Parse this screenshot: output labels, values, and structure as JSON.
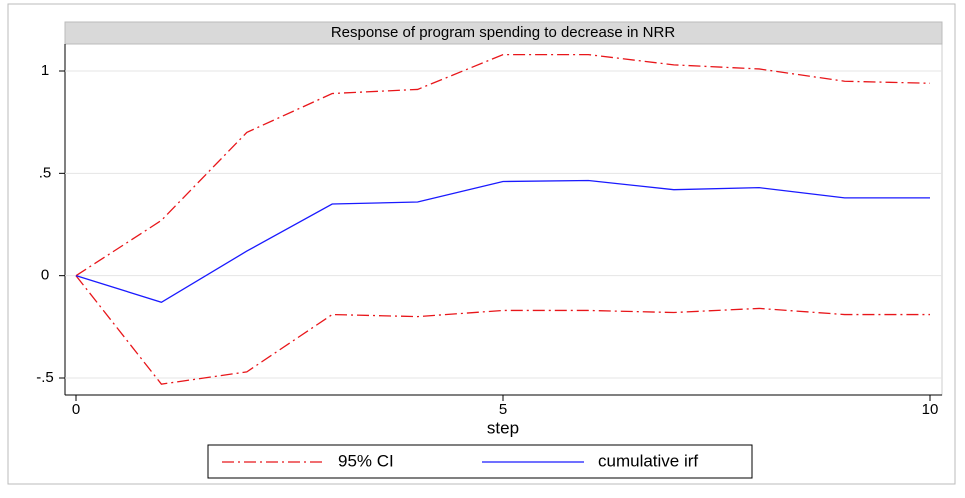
{
  "chart_data": {
    "type": "line",
    "title": "Response of program spending to decrease in NRR",
    "x_label": "step",
    "x": [
      0,
      1,
      2,
      3,
      4,
      5,
      6,
      7,
      8,
      9,
      10
    ],
    "series": [
      {
        "name": "95% CI",
        "color": "#e8161a",
        "dashed": true,
        "upper": [
          0,
          0.27,
          0.7,
          0.89,
          0.91,
          1.08,
          1.08,
          1.03,
          1.01,
          0.95,
          0.94
        ],
        "lower": [
          0,
          -0.53,
          -0.47,
          -0.19,
          -0.2,
          -0.17,
          -0.17,
          -0.18,
          -0.16,
          -0.19,
          -0.19
        ]
      },
      {
        "name": "cumulative irf",
        "color": "#1a1aff",
        "dashed": false,
        "values": [
          0,
          -0.13,
          0.12,
          0.35,
          0.36,
          0.46,
          0.465,
          0.42,
          0.43,
          0.38,
          0.38
        ]
      }
    ],
    "xlim": [
      0,
      10
    ],
    "xticks": [
      0,
      5,
      10
    ],
    "ylim": [
      -0.5,
      1
    ],
    "yticks": [
      {
        "value": -0.5,
        "label": "-.5"
      },
      0,
      {
        "value": 0.5,
        "label": ".5"
      },
      1
    ],
    "grid": true,
    "legend": "bottom"
  }
}
